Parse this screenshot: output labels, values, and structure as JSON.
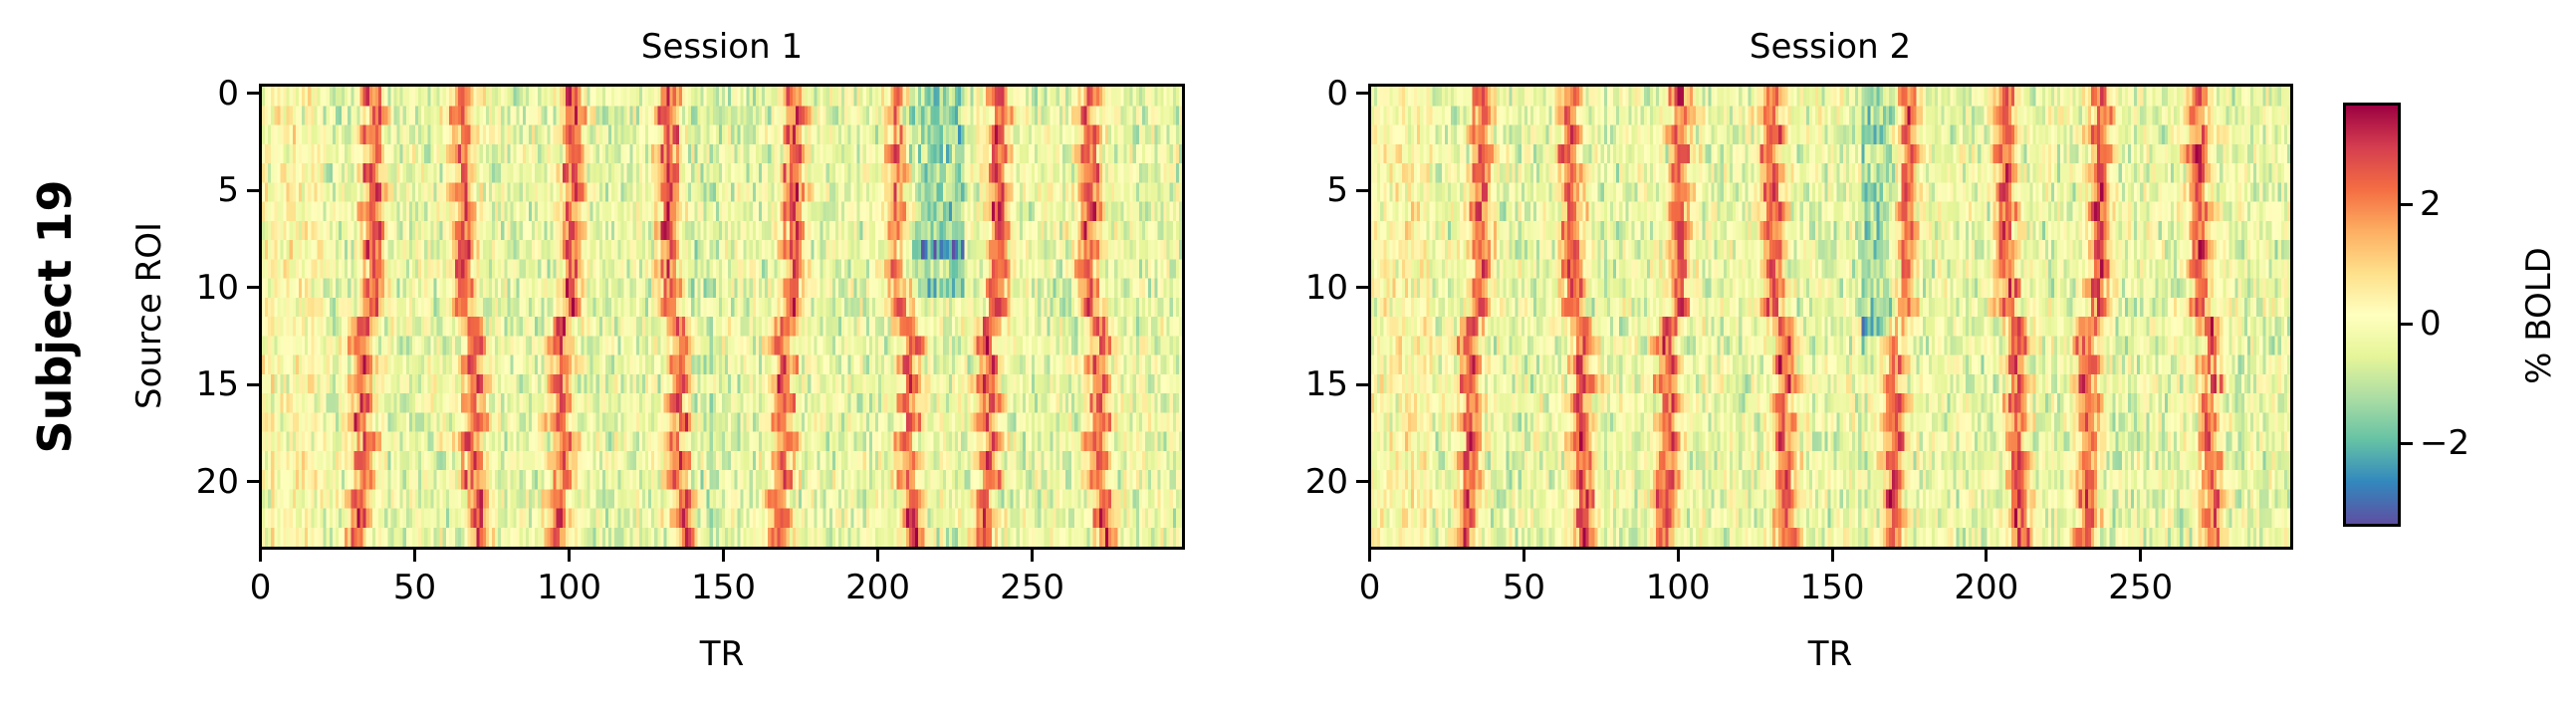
{
  "figure": {
    "row_label": "Subject 19",
    "colorbar_label": "% BOLD"
  },
  "chart_data": {
    "type": "heatmap",
    "colormap": "Spectral_r",
    "colormap_stops": [
      "#5e4fa2",
      "#3288bd",
      "#66c2a5",
      "#abdda4",
      "#e6f598",
      "#ffffbf",
      "#fee08b",
      "#fdae61",
      "#f46d43",
      "#d53e4f",
      "#9e0142"
    ],
    "vmin": -3.4,
    "vmax": 3.7,
    "colorbar": {
      "label": "% BOLD",
      "ticks": [
        2,
        0,
        -2
      ],
      "tick_labels": [
        "2",
        "0",
        "−2"
      ]
    },
    "panels": [
      {
        "title": "Session 1",
        "xlabel": "TR",
        "ylabel": "Source ROI",
        "n_tr": 300,
        "n_roi": 24,
        "xlim": [
          -0.5,
          299.5
        ],
        "ylim": [
          23.5,
          -0.5
        ],
        "xticks": [
          0,
          50,
          100,
          150,
          200,
          250
        ],
        "xtick_labels": [
          "0",
          "50",
          "100",
          "150",
          "200",
          "250"
        ],
        "yticks": [
          0,
          5,
          10,
          15,
          20
        ],
        "ytick_labels": [
          "0",
          "5",
          "10",
          "15",
          "20"
        ],
        "stripe_centers_tr": [
          35,
          66,
          100,
          133,
          172,
          208,
          239,
          270
        ],
        "row_shift_tr": [
          0,
          3,
          0,
          2,
          0,
          2,
          0,
          2,
          0,
          2,
          0,
          1,
          -3,
          -5,
          -2,
          -5,
          -2,
          -5,
          -1,
          -4,
          -2,
          -6,
          -4,
          -6
        ],
        "row_shift_sign_per_stripe": [
          1,
          -1,
          1,
          -1,
          1,
          -1,
          1,
          -1
        ],
        "negative_patch": {
          "tr_range": [
            207,
            228
          ],
          "roi_range": [
            0,
            10
          ],
          "strongest_roi": 8,
          "value": -2.8
        },
        "negative_band_tr": [
          140,
          150
        ],
        "seed": 19
      },
      {
        "title": "Session 2",
        "xlabel": "TR",
        "ylabel": "",
        "n_tr": 300,
        "n_roi": 24,
        "xlim": [
          -0.5,
          299.5
        ],
        "ylim": [
          23.5,
          -0.5
        ],
        "xticks": [
          0,
          50,
          100,
          150,
          200,
          250
        ],
        "xtick_labels": [
          "0",
          "50",
          "100",
          "150",
          "200",
          "250"
        ],
        "yticks": [
          0,
          5,
          10,
          15,
          20
        ],
        "ytick_labels": [
          "0",
          "5",
          "10",
          "15",
          "20"
        ],
        "stripe_centers_tr": [
          35,
          65,
          100,
          131,
          174,
          207,
          237,
          270
        ],
        "row_shift_tr": [
          0,
          2,
          -1,
          2,
          0,
          1,
          -1,
          1,
          0,
          1,
          -1,
          1,
          -4,
          -6,
          -3,
          -6,
          -3,
          -5,
          -3,
          -5,
          -4,
          -6,
          -4,
          -6
        ],
        "row_shift_sign_per_stripe": [
          1,
          -1,
          1,
          -1,
          1,
          -1,
          1,
          -1
        ],
        "negative_patch": {
          "tr_range": [
            160,
            172
          ],
          "roi_range": [
            0,
            13
          ],
          "strongest_roi": 12,
          "value": -2.6
        },
        "negative_band_tr": [],
        "seed": 91
      }
    ]
  }
}
